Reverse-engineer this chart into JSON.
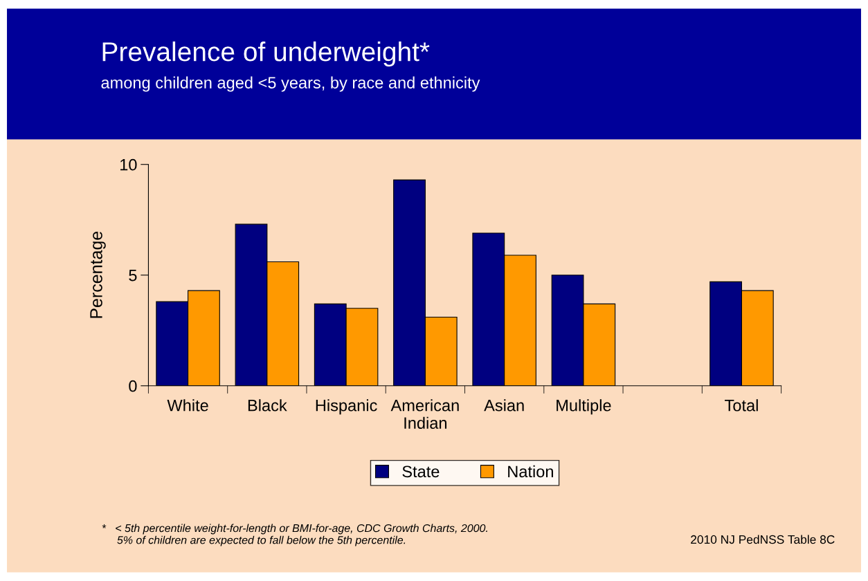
{
  "chart_data": {
    "type": "bar",
    "title": "Prevalence of underweight*",
    "subtitle": "among children aged <5 years, by race and ethnicity",
    "ylabel": "Percentage",
    "categories": [
      "White",
      "Black",
      "Hispanic",
      "American\nIndian",
      "Asian",
      "Multiple",
      null,
      "Total"
    ],
    "series": [
      {
        "name": "State",
        "color": "#000080",
        "values": [
          3.8,
          7.3,
          3.7,
          9.3,
          6.9,
          5.0,
          null,
          4.7
        ]
      },
      {
        "name": "Nation",
        "color": "#ff9900",
        "values": [
          4.3,
          5.6,
          3.5,
          3.1,
          5.9,
          3.7,
          null,
          4.3
        ]
      }
    ],
    "ylim": [
      0,
      10
    ],
    "yticks": [
      0,
      5,
      10
    ],
    "grid": false,
    "legend": "bottom",
    "annotations": [
      "*   < 5th percentile weight-for-length or BMI-for-age, CDC Growth Charts, 2000.\n     5% of children are expected to fall below the 5th percentile.",
      "2010 NJ PedNSS Table 8C"
    ]
  }
}
